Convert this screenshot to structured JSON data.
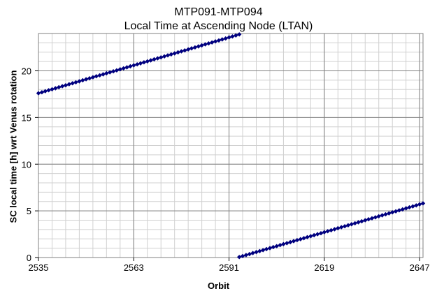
{
  "chart_data": {
    "type": "scatter",
    "title": "MTP091-MTP094",
    "subtitle": "Local Time at Ascending Node (LTAN)",
    "xlabel": "Orbit",
    "ylabel": "SC local time [h] wrt Venus rotation",
    "xlim": [
      2535,
      2648
    ],
    "ylim": [
      0,
      24
    ],
    "xticks": [
      2535,
      2563,
      2591,
      2619,
      2647
    ],
    "yticks": [
      0,
      5,
      10,
      15,
      20
    ],
    "grid": true,
    "marker_color": "#00007f",
    "series": [
      {
        "x_start": 2535,
        "x_end": 2594,
        "x_step": 1,
        "y_start": 17.6,
        "y_end": 23.9
      },
      {
        "x_start": 2594,
        "x_end": 2648,
        "x_step": 1,
        "y_start": 0.05,
        "y_end": 5.8
      }
    ]
  }
}
